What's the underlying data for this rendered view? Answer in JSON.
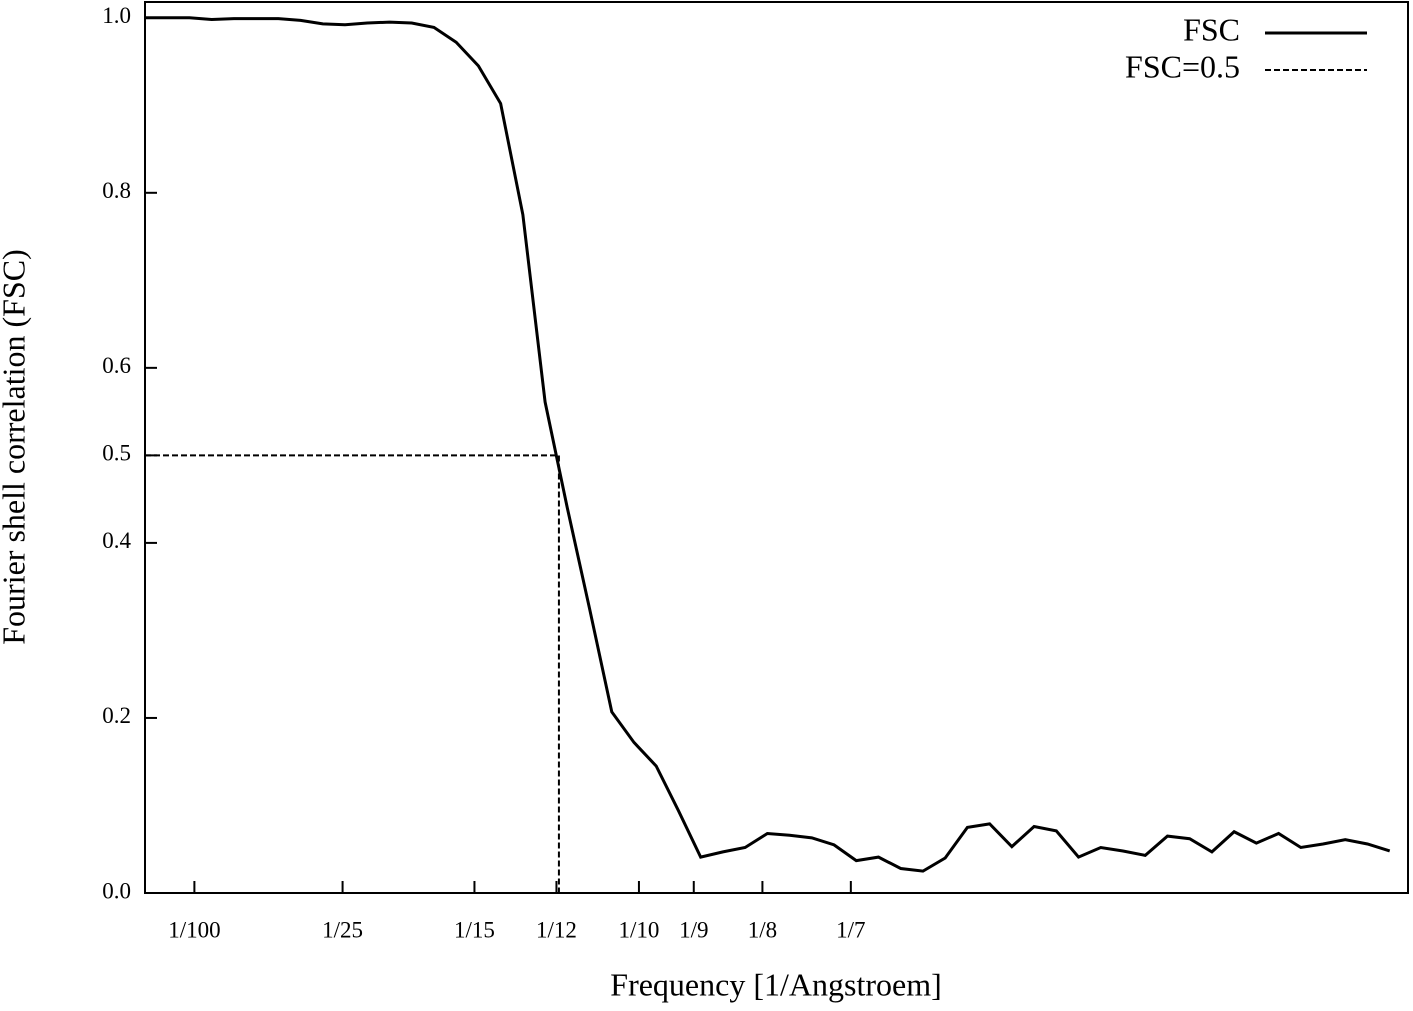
{
  "chart_data": {
    "type": "line",
    "xlabel": "Frequency [1/Angstroem]",
    "ylabel": "Fourier shell correlation (FSC)",
    "x": [
      0,
      0.0045,
      0.009,
      0.0135,
      0.018,
      0.0225,
      0.027,
      0.0315,
      0.036,
      0.0405,
      0.045,
      0.0495,
      0.054,
      0.0585,
      0.063,
      0.0675,
      0.072,
      0.0765,
      0.081,
      0.0855,
      0.09,
      0.0945,
      0.099,
      0.1035,
      0.108,
      0.1125,
      0.117,
      0.1215,
      0.126,
      0.1305,
      0.135,
      0.1395,
      0.144,
      0.1485,
      0.153,
      0.1575,
      0.162,
      0.1665,
      0.171,
      0.1755,
      0.18,
      0.1845,
      0.189,
      0.1935,
      0.198,
      0.2025,
      0.207,
      0.2115,
      0.216,
      0.2205,
      0.225,
      0.2295,
      0.234,
      0.2385,
      0.243,
      0.2475,
      0.252
    ],
    "series": [
      {
        "name": "FSC",
        "color": "#000000",
        "dash": false,
        "values": [
          1.0,
          1.0,
          1.0,
          0.998,
          0.999,
          0.999,
          0.999,
          0.997,
          0.993,
          0.992,
          0.994,
          0.995,
          0.994,
          0.989,
          0.972,
          0.945,
          0.902,
          0.775,
          0.561,
          0.44,
          0.325,
          0.207,
          0.172,
          0.145,
          0.094,
          0.041,
          0.047,
          0.052,
          0.068,
          0.066,
          0.063,
          0.055,
          0.037,
          0.041,
          0.028,
          0.025,
          0.04,
          0.075,
          0.079,
          0.053,
          0.076,
          0.071,
          0.041,
          0.052,
          0.048,
          0.043,
          0.065,
          0.062,
          0.047,
          0.07,
          0.057,
          0.068,
          0.052,
          0.056,
          0.061,
          0.056,
          0.048
        ]
      },
      {
        "name": "FSC=0.5",
        "color": "#000000",
        "dash": true,
        "x": [
          0,
          0.0838,
          0.0838
        ],
        "values": [
          0.5,
          0.5,
          0
        ]
      }
    ],
    "xlim": [
      0,
      0.2557
    ],
    "ylim": [
      0,
      1.018
    ],
    "xticks": [
      {
        "value": 0.01,
        "label": "1/100"
      },
      {
        "value": 0.04,
        "label": "1/25"
      },
      {
        "value": 0.0667,
        "label": "1/15"
      },
      {
        "value": 0.0833,
        "label": "1/12"
      },
      {
        "value": 0.1,
        "label": "1/10"
      },
      {
        "value": 0.1111,
        "label": "1/9"
      },
      {
        "value": 0.125,
        "label": "1/8"
      },
      {
        "value": 0.1429,
        "label": "1/7"
      }
    ],
    "yticks": [
      {
        "value": 0,
        "label": "0.0"
      },
      0.2,
      0.4,
      0.5,
      0.6,
      0.8,
      {
        "value": 1,
        "label": "1.0"
      }
    ],
    "legend": "top-right",
    "grid": false
  }
}
